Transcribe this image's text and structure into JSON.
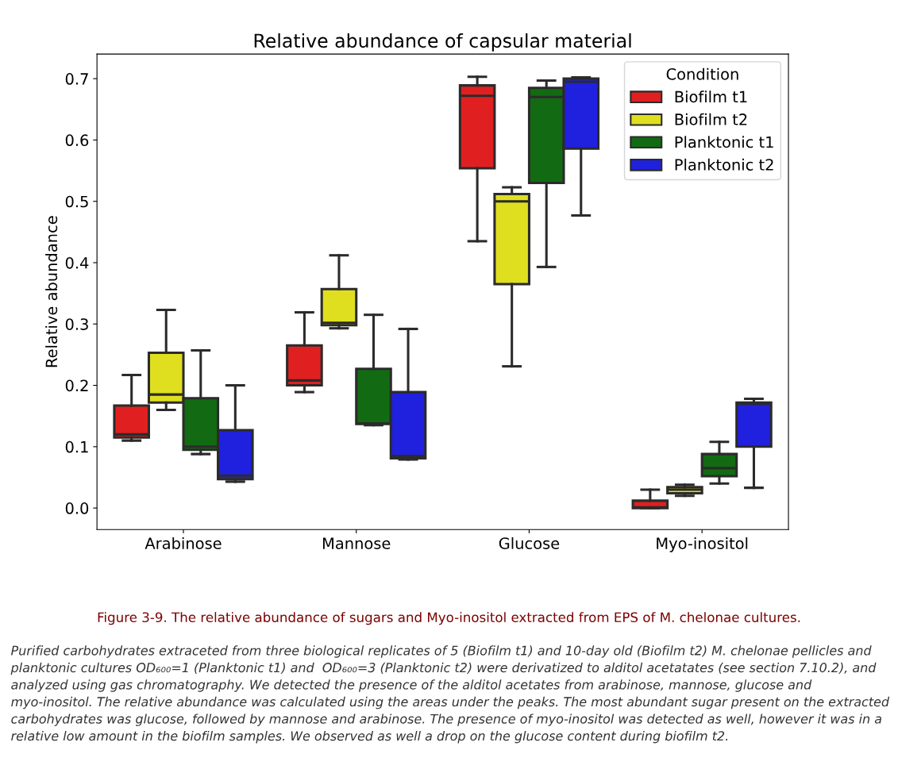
{
  "chart_data": {
    "type": "box",
    "title": "Relative abundance of capsular material",
    "ylabel": "Relative abundance",
    "legend_title": "Condition",
    "legend": "top right",
    "categories": [
      "Arabinose",
      "Mannose",
      "Glucose",
      "Myo-inositol"
    ],
    "ylim": [
      -0.035,
      0.74
    ],
    "yticks": [
      {
        "value": 0,
        "label": "0.0"
      },
      0.1,
      0.2,
      0.3,
      0.4,
      0.5,
      0.6,
      0.7
    ],
    "series": [
      {
        "name": "Biofilm t1",
        "color": "#e02020",
        "boxes": [
          {
            "low": 0.11,
            "q1": 0.115,
            "median": 0.12,
            "q3": 0.167,
            "high": 0.217
          },
          {
            "low": 0.189,
            "q1": 0.2,
            "median": 0.208,
            "q3": 0.265,
            "high": 0.319
          },
          {
            "low": 0.435,
            "q1": 0.554,
            "median": 0.672,
            "q3": 0.689,
            "high": 0.703
          },
          {
            "low": 0.0,
            "q1": 0.0,
            "median": 0.001,
            "q3": 0.012,
            "high": 0.03
          }
        ]
      },
      {
        "name": "Biofilm t2",
        "color": "#dfdf20",
        "boxes": [
          {
            "low": 0.16,
            "q1": 0.172,
            "median": 0.185,
            "q3": 0.253,
            "high": 0.323
          },
          {
            "low": 0.293,
            "q1": 0.298,
            "median": 0.302,
            "q3": 0.357,
            "high": 0.412
          },
          {
            "low": 0.231,
            "q1": 0.365,
            "median": 0.5,
            "q3": 0.512,
            "high": 0.523
          },
          {
            "low": 0.02,
            "q1": 0.024,
            "median": 0.03,
            "q3": 0.034,
            "high": 0.038
          }
        ]
      },
      {
        "name": "Planktonic t1",
        "color": "#126b12",
        "boxes": [
          {
            "low": 0.088,
            "q1": 0.095,
            "median": 0.1,
            "q3": 0.179,
            "high": 0.257
          },
          {
            "low": 0.135,
            "q1": 0.137,
            "median": 0.138,
            "q3": 0.227,
            "high": 0.315
          },
          {
            "low": 0.393,
            "q1": 0.53,
            "median": 0.67,
            "q3": 0.685,
            "high": 0.697
          },
          {
            "low": 0.04,
            "q1": 0.052,
            "median": 0.065,
            "q3": 0.088,
            "high": 0.108
          }
        ]
      },
      {
        "name": "Planktonic t2",
        "color": "#2020df",
        "boxes": [
          {
            "low": 0.043,
            "q1": 0.047,
            "median": 0.053,
            "q3": 0.127,
            "high": 0.2
          },
          {
            "low": 0.079,
            "q1": 0.081,
            "median": 0.085,
            "q3": 0.189,
            "high": 0.292
          },
          {
            "low": 0.477,
            "q1": 0.586,
            "median": 0.695,
            "q3": 0.7,
            "high": 0.702
          },
          {
            "low": 0.033,
            "q1": 0.1,
            "median": 0.17,
            "q3": 0.172,
            "high": 0.178
          }
        ]
      }
    ],
    "annotations": [
      "Figure 3-9. The relative abundance of sugars and Myo-inositol extracted from EPS of M. chelonae cultures.",
      "Purified carbohydrates extraceted from three biological replicates of 5 (Biofilm t1) and 10-day old (Biofilm t2) M. chelonae pellicles and planktonic cultures OD₆₀₀=1 (Planktonic t1) and  OD₆₀₀=3 (Planktonic t2) were derivatized to alditol acetatates (see section 7.10.2), and analyzed using gas chromatography. We detected the presence of the alditol acetates from arabinose, mannose, glucose and myo-inositol. The relative abundance was calculated using the areas under the peaks. The most abundant sugar present on the extracted carbohydrates was glucose, followed by mannose and arabinose. The presence of myo-inositol was detected as well, however it was in a relative low amount in the biofilm samples. We observed as well a drop on the glucose content during biofilm t2."
    ]
  }
}
